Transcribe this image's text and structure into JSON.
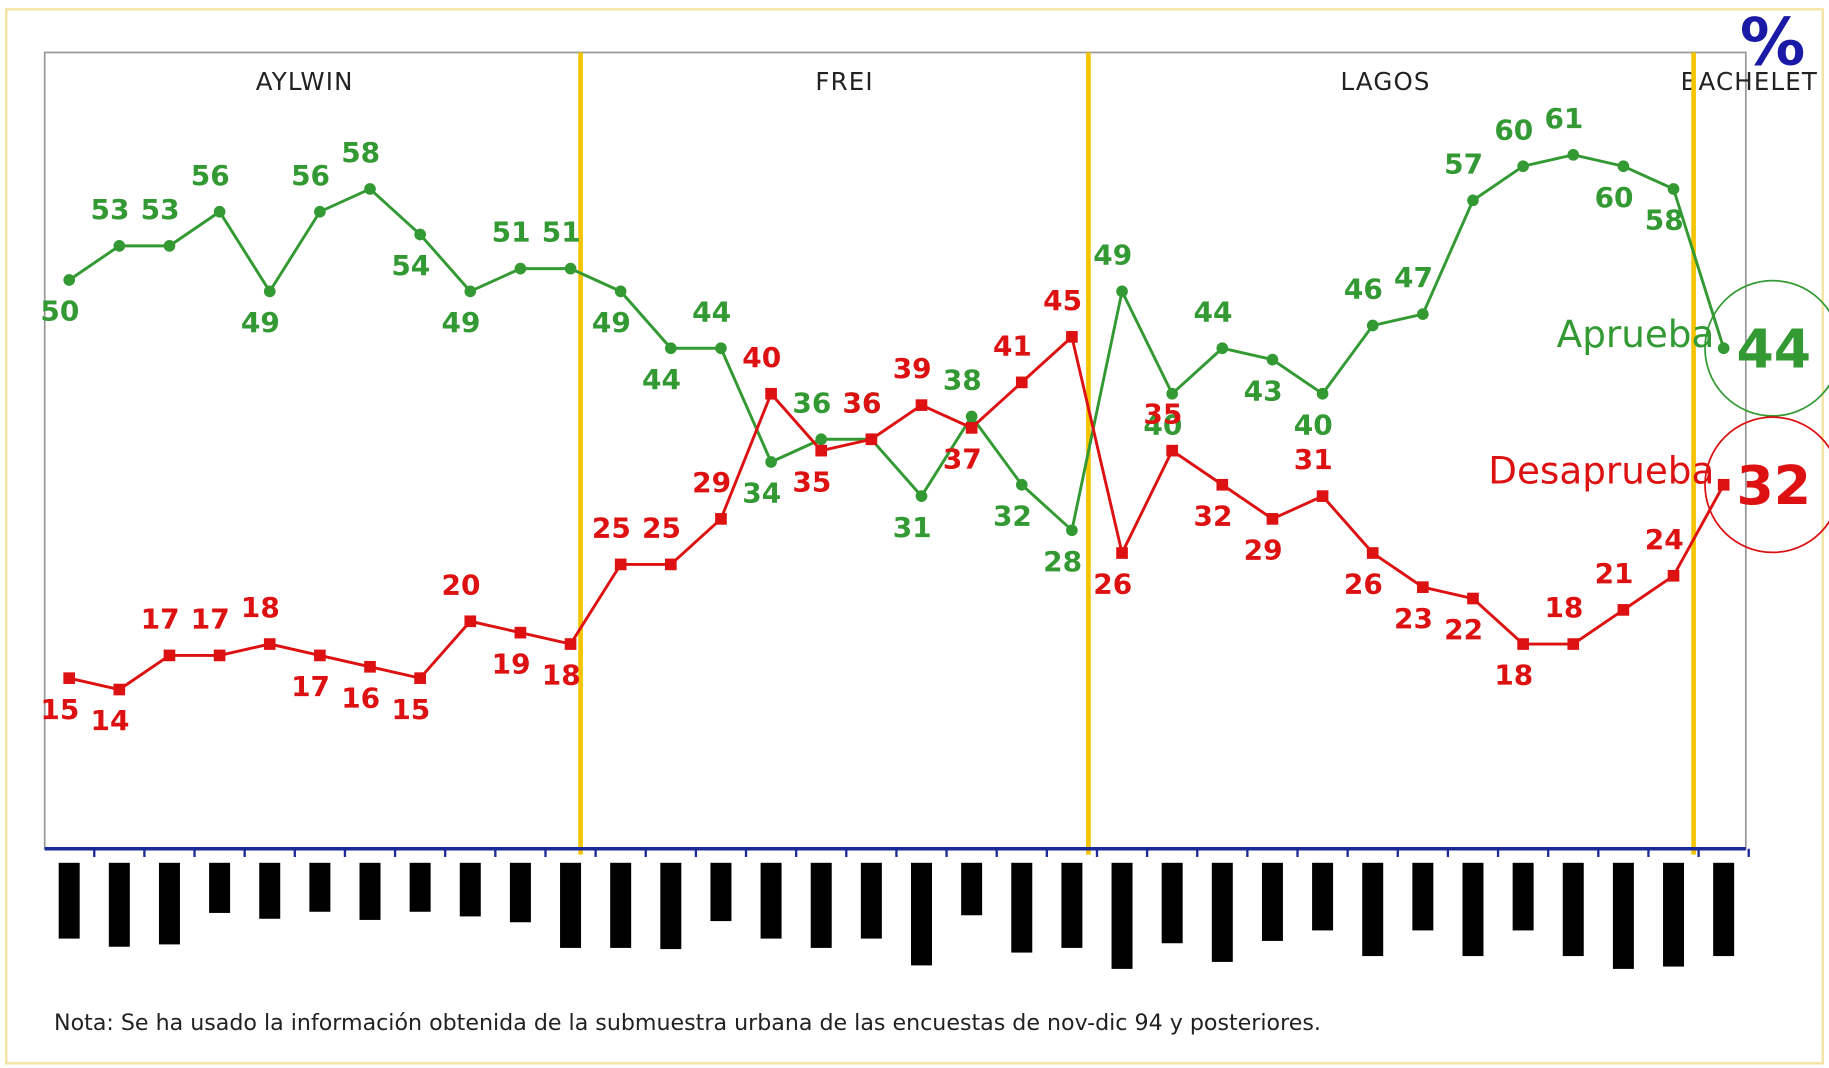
{
  "chart_data": {
    "type": "line",
    "periods": [
      "AYLWIN",
      "FREI",
      "LAGOS",
      "BACHELET"
    ],
    "unit": "%",
    "note": "Nota: Se ha usado la información obtenida de la submuestra urbana de las encuestas de nov-dic 94 y posteriores.",
    "categories": [
      null,
      null,
      null,
      null,
      null,
      null,
      null,
      null,
      null,
      null,
      null,
      null,
      null,
      null,
      null,
      null,
      null,
      null,
      null,
      null,
      null,
      null,
      null,
      null,
      null,
      null,
      null,
      null,
      null,
      null,
      null,
      null,
      null,
      null
    ],
    "ylim": [
      0,
      70
    ],
    "series": [
      {
        "name": "Aprueba",
        "color": "#339933",
        "marker": "circle",
        "values": [
          50,
          53,
          53,
          56,
          49,
          56,
          58,
          54,
          49,
          51,
          51,
          49,
          44,
          44,
          34,
          36,
          36,
          31,
          38,
          32,
          28,
          49,
          40,
          44,
          43,
          40,
          46,
          47,
          57,
          60,
          61,
          60,
          58,
          44
        ]
      },
      {
        "name": "Desaprueba",
        "color": "#dd1111",
        "marker": "square",
        "values": [
          15,
          14,
          17,
          17,
          18,
          17,
          16,
          15,
          20,
          19,
          18,
          25,
          25,
          29,
          40,
          35,
          36,
          39,
          37,
          41,
          45,
          26,
          35,
          32,
          29,
          31,
          26,
          23,
          22,
          18,
          18,
          21,
          24,
          32
        ]
      }
    ]
  }
}
